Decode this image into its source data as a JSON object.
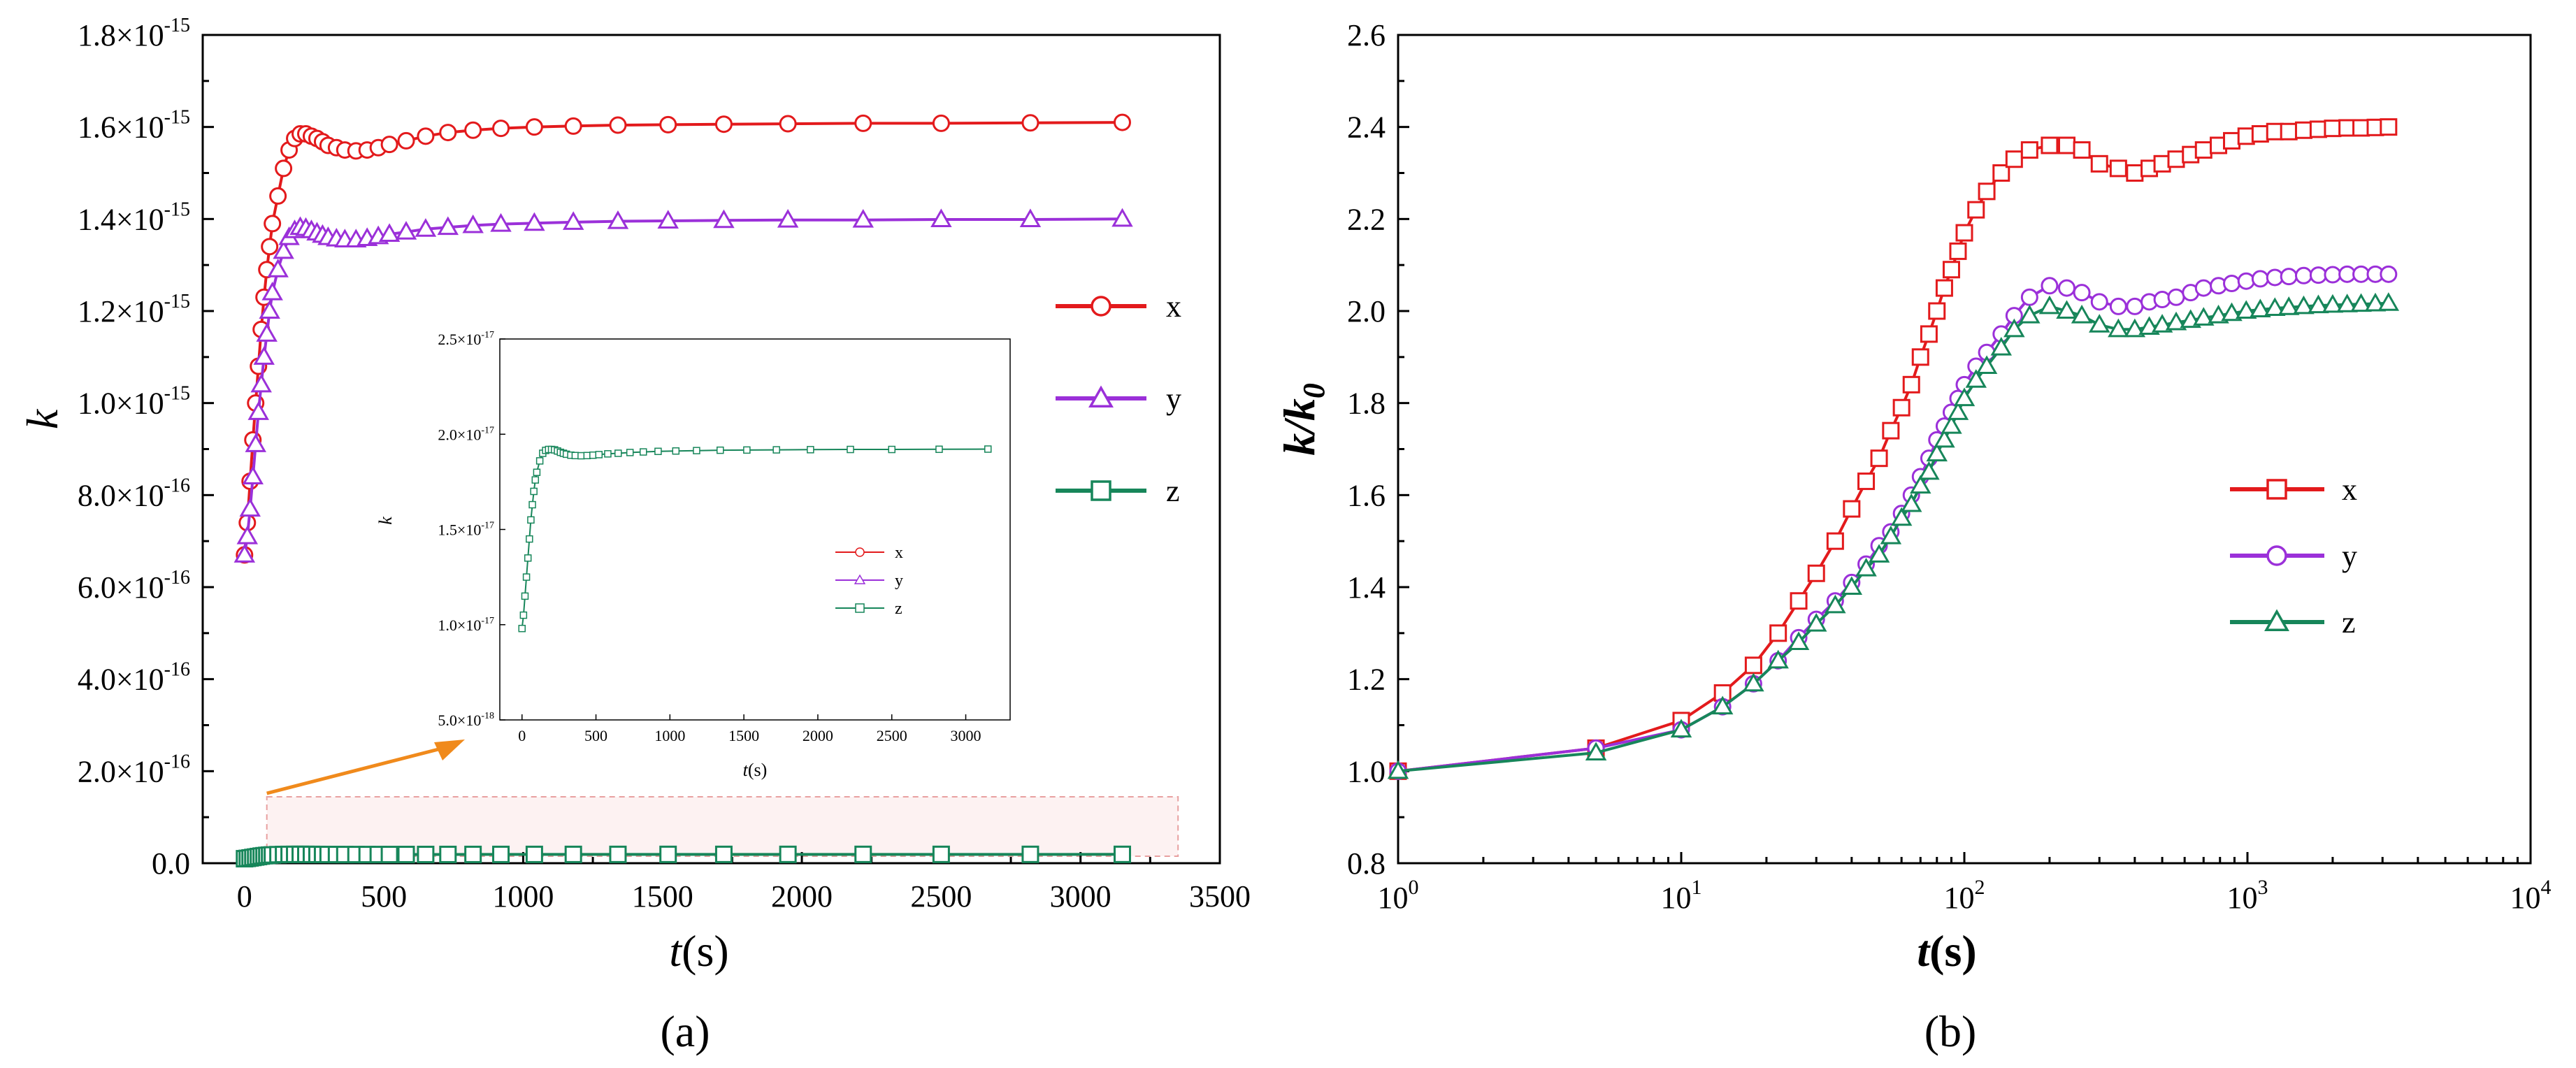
{
  "figure_labels": [
    "(a)",
    "(b)"
  ],
  "colors": {
    "x": "#e31a1c",
    "y": "#9b30d9",
    "z": "#17865a",
    "arrow": "#f08a1c",
    "zoom_box": "#e8a0a0"
  },
  "chart_data": [
    {
      "panel": "(a)",
      "type": "line",
      "xlabel_italic": "t",
      "xlabel_unit": "(s)",
      "ylabel": "k",
      "xlim": [
        -150,
        3500
      ],
      "ylim": [
        0,
        1.8e-15
      ],
      "x_ticks": [
        0,
        500,
        1000,
        1500,
        2000,
        2500,
        3000,
        3500
      ],
      "x_tick_labels": [
        "0",
        "500",
        "1000",
        "1500",
        "2000",
        "2500",
        "3000",
        "3500"
      ],
      "y_ticks": [
        0,
        2e-16,
        4e-16,
        6e-16,
        8e-16,
        1e-15,
        1.2e-15,
        1.4e-15,
        1.6e-15,
        1.8e-15
      ],
      "y_tick_labels": [
        {
          "mant": "0.0",
          "exp": ""
        },
        {
          "mant": "2.0×10",
          "exp": "-16"
        },
        {
          "mant": "4.0×10",
          "exp": "-16"
        },
        {
          "mant": "6.0×10",
          "exp": "-16"
        },
        {
          "mant": "8.0×10",
          "exp": "-16"
        },
        {
          "mant": "1.0×10",
          "exp": "-15"
        },
        {
          "mant": "1.2×10",
          "exp": "-15"
        },
        {
          "mant": "1.4×10",
          "exp": "-15"
        },
        {
          "mant": "1.6×10",
          "exp": "-15"
        },
        {
          "mant": "1.8×10",
          "exp": "-15"
        }
      ],
      "legend_position": "right-middle",
      "series": [
        {
          "name": "x",
          "marker": "circle",
          "x": [
            0,
            10,
            20,
            30,
            40,
            50,
            60,
            70,
            80,
            90,
            100,
            120,
            140,
            160,
            180,
            200,
            220,
            240,
            260,
            280,
            300,
            330,
            360,
            400,
            440,
            480,
            520,
            580,
            650,
            730,
            820,
            920,
            1040,
            1180,
            1340,
            1520,
            1720,
            1950,
            2220,
            2500,
            2820,
            3150
          ],
          "y": [
            6.7e-16,
            7.4e-16,
            8.3e-16,
            9.2e-16,
            1e-15,
            1.08e-15,
            1.16e-15,
            1.23e-15,
            1.29e-15,
            1.34e-15,
            1.39e-15,
            1.45e-15,
            1.51e-15,
            1.55e-15,
            1.575e-15,
            1.585e-15,
            1.585e-15,
            1.58e-15,
            1.575e-15,
            1.568e-15,
            1.56e-15,
            1.555e-15,
            1.55e-15,
            1.548e-15,
            1.55e-15,
            1.555e-15,
            1.562e-15,
            1.57e-15,
            1.58e-15,
            1.588e-15,
            1.593e-15,
            1.597e-15,
            1.6e-15,
            1.602e-15,
            1.604e-15,
            1.605e-15,
            1.606e-15,
            1.607e-15,
            1.608e-15,
            1.608e-15,
            1.609e-15,
            1.61e-15
          ]
        },
        {
          "name": "y",
          "marker": "triangle",
          "x": [
            0,
            10,
            20,
            30,
            40,
            50,
            60,
            70,
            80,
            90,
            100,
            120,
            140,
            160,
            180,
            200,
            220,
            240,
            260,
            280,
            300,
            330,
            360,
            400,
            440,
            480,
            520,
            580,
            650,
            730,
            820,
            920,
            1040,
            1180,
            1340,
            1520,
            1720,
            1950,
            2220,
            2500,
            2820,
            3150
          ],
          "y": [
            6.7e-16,
            7.1e-16,
            7.7e-16,
            8.4e-16,
            9.1e-16,
            9.8e-16,
            1.04e-15,
            1.1e-15,
            1.15e-15,
            1.2e-15,
            1.24e-15,
            1.29e-15,
            1.33e-15,
            1.36e-15,
            1.375e-15,
            1.382e-15,
            1.38e-15,
            1.375e-15,
            1.37e-15,
            1.365e-15,
            1.36e-15,
            1.357e-15,
            1.355e-15,
            1.355e-15,
            1.358e-15,
            1.362e-15,
            1.367e-15,
            1.372e-15,
            1.378e-15,
            1.382e-15,
            1.386e-15,
            1.389e-15,
            1.391e-15,
            1.393e-15,
            1.395e-15,
            1.396e-15,
            1.397e-15,
            1.398e-15,
            1.398e-15,
            1.399e-15,
            1.399e-15,
            1.4e-15
          ]
        },
        {
          "name": "z",
          "marker": "square",
          "x": [
            0,
            10,
            20,
            30,
            40,
            50,
            60,
            70,
            80,
            90,
            100,
            120,
            140,
            160,
            180,
            200,
            220,
            240,
            260,
            280,
            300,
            330,
            360,
            400,
            440,
            480,
            520,
            580,
            650,
            730,
            820,
            920,
            1040,
            1180,
            1340,
            1520,
            1720,
            1950,
            2220,
            2500,
            2820,
            3150
          ],
          "y": [
            9.8e-18,
            1.05e-17,
            1.15e-17,
            1.25e-17,
            1.35e-17,
            1.45e-17,
            1.55e-17,
            1.63e-17,
            1.7e-17,
            1.76e-17,
            1.8e-17,
            1.86e-17,
            1.9e-17,
            1.915e-17,
            1.92e-17,
            1.92e-17,
            1.918e-17,
            1.912e-17,
            1.905e-17,
            1.9e-17,
            1.895e-17,
            1.89e-17,
            1.888e-17,
            1.887e-17,
            1.888e-17,
            1.89e-17,
            1.893e-17,
            1.897e-17,
            1.9e-17,
            1.904e-17,
            1.907e-17,
            1.91e-17,
            1.912e-17,
            1.914e-17,
            1.916e-17,
            1.917e-17,
            1.918e-17,
            1.919e-17,
            1.92e-17,
            1.92e-17,
            1.921e-17,
            1.922e-17
          ]
        }
      ],
      "inset": {
        "xlabel_italic": "t",
        "xlabel_unit": "(s)",
        "ylabel": "k",
        "xlim": [
          -150,
          3300
        ],
        "ylim": [
          5e-18,
          2.5e-17
        ],
        "x_ticks": [
          0,
          500,
          1000,
          1500,
          2000,
          2500,
          3000
        ],
        "x_tick_labels": [
          "0",
          "500",
          "1000",
          "1500",
          "2000",
          "2500",
          "3000"
        ],
        "y_ticks": [
          5e-18,
          1e-17,
          1.5e-17,
          2e-17,
          2.5e-17
        ],
        "y_tick_labels": [
          {
            "mant": "5.0×10",
            "exp": "-18"
          },
          {
            "mant": "1.0×10",
            "exp": "-17"
          },
          {
            "mant": "1.5×10",
            "exp": "-17"
          },
          {
            "mant": "2.0×10",
            "exp": "-17"
          },
          {
            "mant": "2.5×10",
            "exp": "-17"
          }
        ],
        "legend": [
          "x",
          "y",
          "z"
        ],
        "shown_series": "z"
      }
    },
    {
      "panel": "(b)",
      "type": "line",
      "x_scale": "log",
      "xlabel_italic": "t",
      "xlabel_unit": "(s)",
      "ylabel": "k/k",
      "ylabel_sub": "0",
      "xlim": [
        1,
        10000
      ],
      "ylim": [
        0.8,
        2.6
      ],
      "x_ticks": [
        1,
        10,
        100,
        1000,
        10000
      ],
      "x_tick_labels": [
        {
          "base": "10",
          "exp": "0"
        },
        {
          "base": "10",
          "exp": "1"
        },
        {
          "base": "10",
          "exp": "2"
        },
        {
          "base": "10",
          "exp": "3"
        },
        {
          "base": "10",
          "exp": "4"
        }
      ],
      "y_ticks": [
        0.8,
        1.0,
        1.2,
        1.4,
        1.6,
        1.8,
        2.0,
        2.2,
        2.4,
        2.6
      ],
      "y_tick_labels": [
        "0.8",
        "1.0",
        "1.2",
        "1.4",
        "1.6",
        "1.8",
        "2.0",
        "2.2",
        "2.4",
        "2.6"
      ],
      "legend_position": "right-middle",
      "series": [
        {
          "name": "x",
          "marker": "square",
          "x": [
            1,
            5,
            10,
            14,
            18,
            22,
            26,
            30,
            35,
            40,
            45,
            50,
            55,
            60,
            65,
            70,
            75,
            80,
            85,
            90,
            95,
            100,
            110,
            120,
            135,
            150,
            170,
            200,
            230,
            260,
            300,
            350,
            400,
            450,
            500,
            560,
            630,
            700,
            790,
            880,
            990,
            1110,
            1250,
            1400,
            1580,
            1780,
            2000,
            2250,
            2520,
            2830,
            3150
          ],
          "y": [
            1.0,
            1.05,
            1.11,
            1.17,
            1.23,
            1.3,
            1.37,
            1.43,
            1.5,
            1.57,
            1.63,
            1.68,
            1.74,
            1.79,
            1.84,
            1.9,
            1.95,
            2.0,
            2.05,
            2.09,
            2.13,
            2.17,
            2.22,
            2.26,
            2.3,
            2.33,
            2.35,
            2.36,
            2.36,
            2.35,
            2.32,
            2.31,
            2.3,
            2.31,
            2.32,
            2.33,
            2.34,
            2.35,
            2.36,
            2.37,
            2.38,
            2.385,
            2.39,
            2.39,
            2.393,
            2.395,
            2.397,
            2.398,
            2.398,
            2.399,
            2.4
          ]
        },
        {
          "name": "y",
          "marker": "circle",
          "x": [
            1,
            5,
            10,
            14,
            18,
            22,
            26,
            30,
            35,
            40,
            45,
            50,
            55,
            60,
            65,
            70,
            75,
            80,
            85,
            90,
            95,
            100,
            110,
            120,
            135,
            150,
            170,
            200,
            230,
            260,
            300,
            350,
            400,
            450,
            500,
            560,
            630,
            700,
            790,
            880,
            990,
            1110,
            1250,
            1400,
            1580,
            1780,
            2000,
            2250,
            2520,
            2830,
            3150
          ],
          "y": [
            1.0,
            1.05,
            1.09,
            1.14,
            1.19,
            1.24,
            1.29,
            1.33,
            1.37,
            1.41,
            1.45,
            1.49,
            1.52,
            1.56,
            1.6,
            1.64,
            1.68,
            1.72,
            1.75,
            1.78,
            1.81,
            1.84,
            1.88,
            1.91,
            1.95,
            1.99,
            2.03,
            2.055,
            2.05,
            2.04,
            2.02,
            2.01,
            2.01,
            2.02,
            2.025,
            2.03,
            2.04,
            2.05,
            2.055,
            2.06,
            2.065,
            2.07,
            2.073,
            2.075,
            2.077,
            2.078,
            2.079,
            2.08,
            2.08,
            2.08,
            2.08
          ]
        },
        {
          "name": "z",
          "marker": "triangle",
          "x": [
            1,
            5,
            10,
            14,
            18,
            22,
            26,
            30,
            35,
            40,
            45,
            50,
            55,
            60,
            65,
            70,
            75,
            80,
            85,
            90,
            95,
            100,
            110,
            120,
            135,
            150,
            170,
            200,
            230,
            260,
            300,
            350,
            400,
            450,
            500,
            560,
            630,
            700,
            790,
            880,
            990,
            1110,
            1250,
            1400,
            1580,
            1780,
            2000,
            2250,
            2520,
            2830,
            3150
          ],
          "y": [
            1.0,
            1.04,
            1.09,
            1.14,
            1.19,
            1.24,
            1.28,
            1.32,
            1.36,
            1.4,
            1.44,
            1.47,
            1.51,
            1.55,
            1.58,
            1.62,
            1.65,
            1.69,
            1.72,
            1.75,
            1.78,
            1.81,
            1.85,
            1.88,
            1.92,
            1.96,
            1.99,
            2.01,
            2.0,
            1.99,
            1.97,
            1.96,
            1.96,
            1.965,
            1.97,
            1.975,
            1.98,
            1.985,
            1.99,
            1.995,
            2.0,
            2.003,
            2.006,
            2.008,
            2.01,
            2.012,
            2.013,
            2.014,
            2.015,
            2.016,
            2.017
          ]
        }
      ]
    }
  ]
}
